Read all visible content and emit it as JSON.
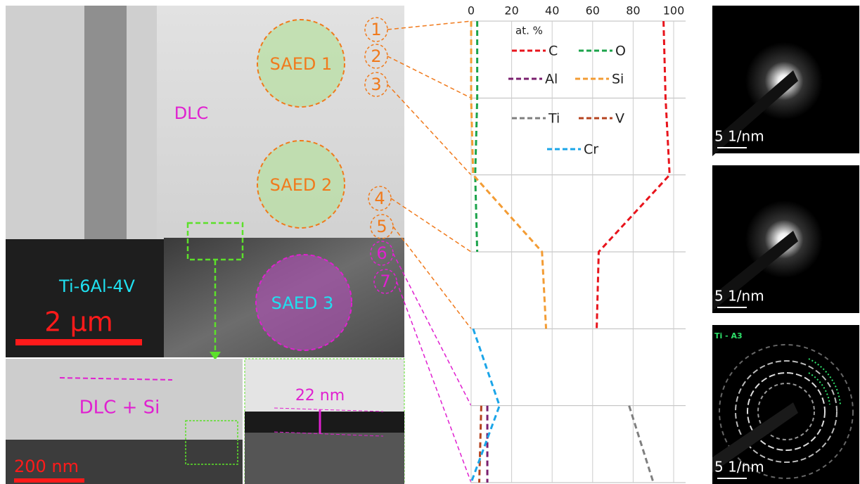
{
  "chart_data": {
    "type": "line",
    "categories": [
      "1",
      "2",
      "3",
      "4",
      "5",
      "6",
      "7"
    ],
    "xlim": [
      0,
      100
    ],
    "xticks": [
      0,
      20,
      40,
      60,
      80,
      100
    ],
    "grid": true,
    "legend_title": "at. %",
    "series": [
      {
        "name": "C",
        "color": "#e8141c",
        "values": [
          95,
          96,
          98,
          63,
          62,
          null,
          null
        ]
      },
      {
        "name": "O",
        "color": "#1ba34a",
        "values": [
          3,
          3,
          2,
          3,
          null,
          null,
          null
        ]
      },
      {
        "name": "Al",
        "color": "#7a1f6e",
        "values": [
          null,
          null,
          null,
          null,
          null,
          8,
          8
        ]
      },
      {
        "name": "Si",
        "color": "#f39c34",
        "values": [
          0,
          0,
          1,
          35,
          37,
          null,
          null
        ]
      },
      {
        "name": "Ti",
        "color": "#7f7f7f",
        "values": [
          null,
          null,
          null,
          null,
          null,
          78,
          90
        ]
      },
      {
        "name": "V",
        "color": "#b5431f",
        "values": [
          null,
          null,
          null,
          null,
          null,
          5,
          4
        ]
      },
      {
        "name": "Cr",
        "color": "#1ba5e8",
        "values": [
          null,
          null,
          null,
          null,
          1,
          14,
          0
        ]
      }
    ]
  },
  "annotations": {
    "saed1": "SAED 1",
    "saed2": "SAED 2",
    "saed3": "SAED 3",
    "dlc": "DLC",
    "substrate": "Ti-6Al-4V",
    "scale_main": "2 μm",
    "dlc_si": "DLC + Si",
    "scale_inset": "200 nm",
    "thickness": "22 nm",
    "pattern_scales": [
      "5 1/nm",
      "5 1/nm",
      "5 1/nm"
    ],
    "pattern_label": "Ti - A3"
  }
}
